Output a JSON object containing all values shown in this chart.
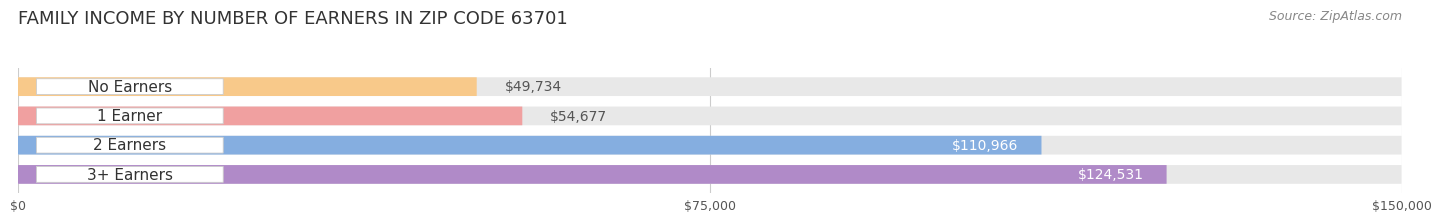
{
  "title": "FAMILY INCOME BY NUMBER OF EARNERS IN ZIP CODE 63701",
  "source": "Source: ZipAtlas.com",
  "categories": [
    "No Earners",
    "1 Earner",
    "2 Earners",
    "3+ Earners"
  ],
  "values": [
    49734,
    54677,
    110966,
    124531
  ],
  "max_value": 150000,
  "bar_colors": [
    "#f8c98a",
    "#f0a0a0",
    "#85aee0",
    "#b08ac8"
  ],
  "bar_bg_color": "#e8e8e8",
  "label_colors": [
    "#555555",
    "#555555",
    "#ffffff",
    "#ffffff"
  ],
  "value_labels": [
    "$49,734",
    "$54,677",
    "$110,966",
    "$124,531"
  ],
  "x_ticks": [
    0,
    75000,
    150000
  ],
  "x_tick_labels": [
    "$0",
    "$75,000",
    "$150,000"
  ],
  "background_color": "#ffffff",
  "title_fontsize": 13,
  "label_fontsize": 11,
  "value_fontsize": 10,
  "source_fontsize": 9
}
